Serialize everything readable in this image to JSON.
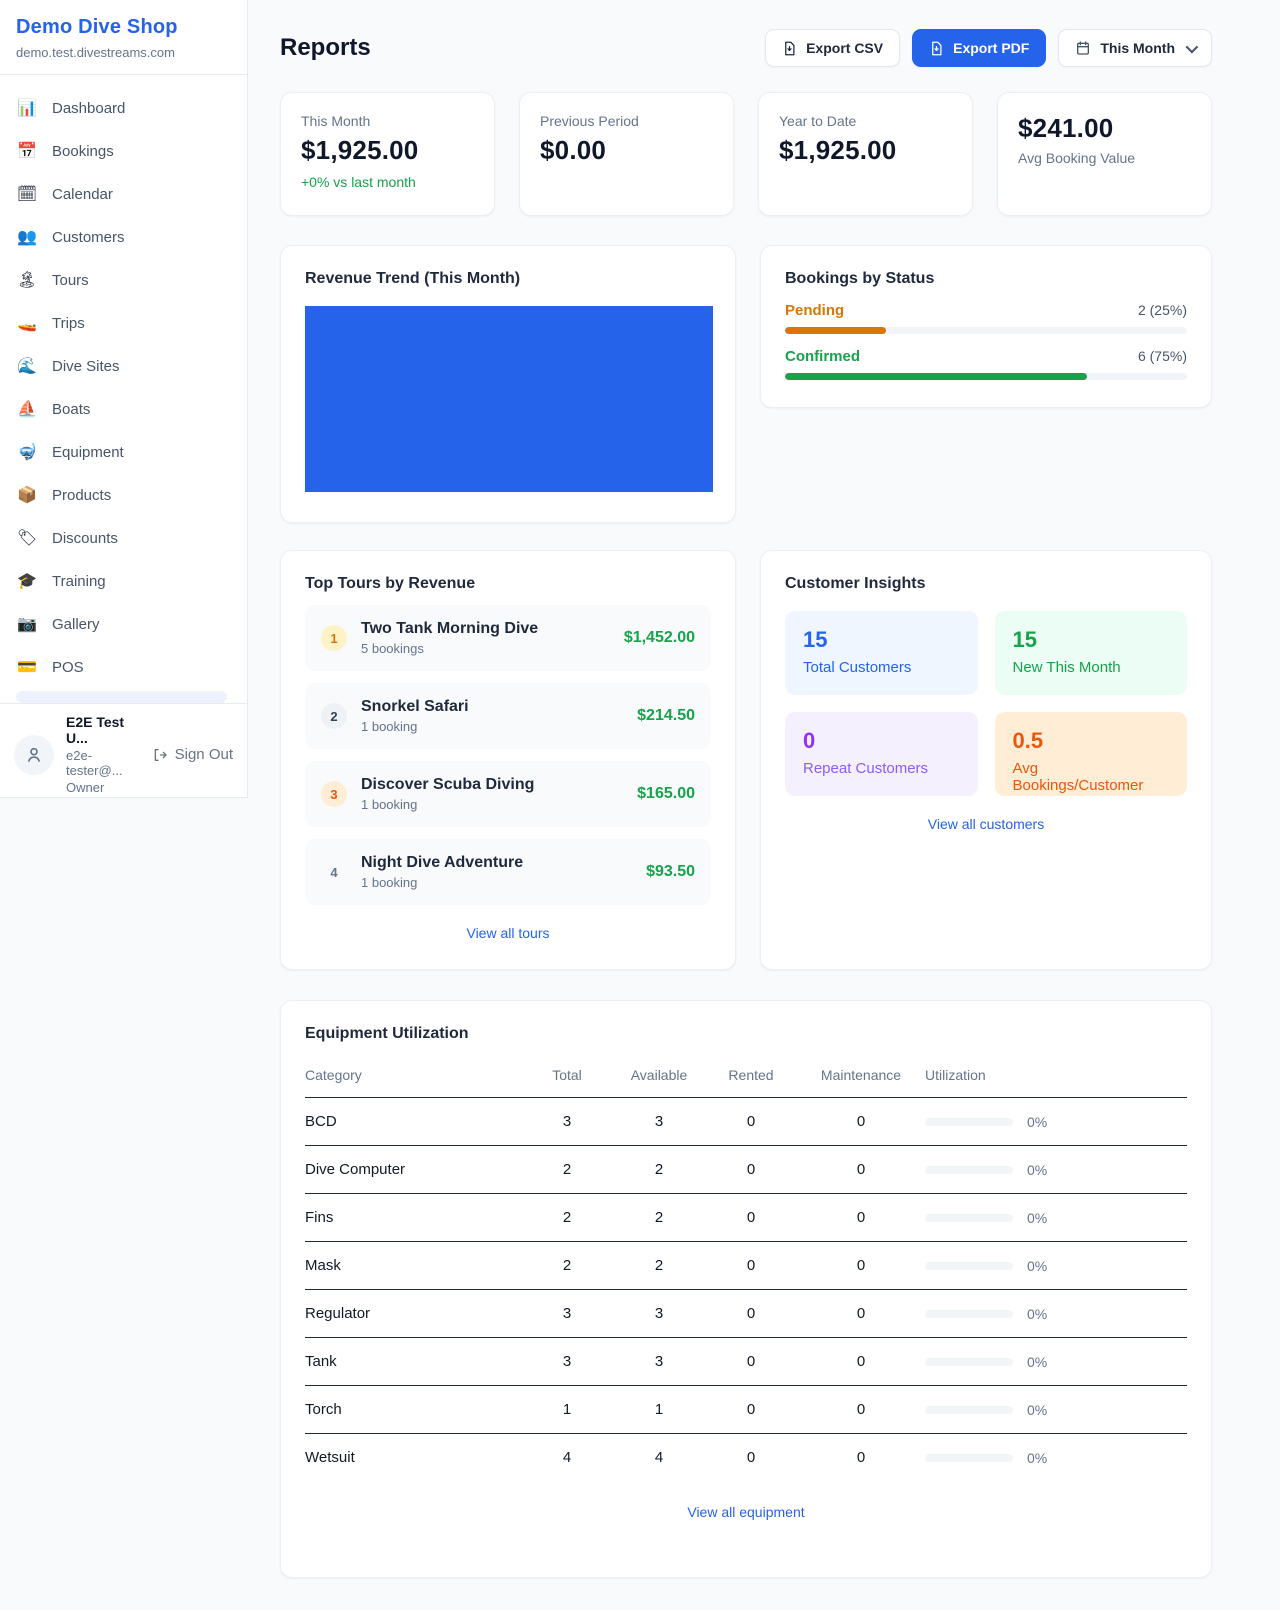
{
  "colors": {
    "accent": "#2563eb",
    "green": "#16a34a",
    "orange": "#d97706",
    "deep_orange": "#ea580c",
    "purple": "#9333ea"
  },
  "sidebar": {
    "shop_name": "Demo Dive Shop",
    "domain": "demo.test.divestreams.com",
    "items": [
      {
        "icon": "dashboard-chart-icon",
        "glyph": "📊",
        "label": "Dashboard"
      },
      {
        "icon": "bookings-calendar-icon",
        "glyph": "📅",
        "label": "Bookings"
      },
      {
        "icon": "calendar-icon",
        "glyph": "🗓",
        "label": "Calendar"
      },
      {
        "icon": "customers-icon",
        "glyph": "👥",
        "label": "Customers"
      },
      {
        "icon": "tours-island-icon",
        "glyph": "🏝",
        "label": "Tours"
      },
      {
        "icon": "trips-speedboat-icon",
        "glyph": "🚤",
        "label": "Trips"
      },
      {
        "icon": "dive-sites-wave-icon",
        "glyph": "🌊",
        "label": "Dive Sites"
      },
      {
        "icon": "boats-sailboat-icon",
        "glyph": "⛵",
        "label": "Boats"
      },
      {
        "icon": "equipment-mask-icon",
        "glyph": "🤿",
        "label": "Equipment"
      },
      {
        "icon": "products-box-icon",
        "glyph": "📦",
        "label": "Products"
      },
      {
        "icon": "discounts-tag-icon",
        "glyph": "🏷",
        "label": "Discounts"
      },
      {
        "icon": "training-cap-icon",
        "glyph": "🎓",
        "label": "Training"
      },
      {
        "icon": "gallery-camera-icon",
        "glyph": "📷",
        "label": "Gallery"
      },
      {
        "icon": "pos-card-icon",
        "glyph": "💳",
        "label": "POS"
      }
    ],
    "user": {
      "name": "E2E Test U...",
      "email": "e2e-tester@...",
      "role": "Owner",
      "sign_out": "Sign Out"
    }
  },
  "header": {
    "title": "Reports",
    "export_csv": "Export CSV",
    "export_pdf": "Export PDF",
    "period": "This Month"
  },
  "stats": [
    {
      "label": "This Month",
      "value": "$1,925.00",
      "delta": "+0% vs last month"
    },
    {
      "label": "Previous Period",
      "value": "$0.00"
    },
    {
      "label": "Year to Date",
      "value": "$1,925.00"
    },
    {
      "label": "Avg Booking Value",
      "value": "$241.00"
    }
  ],
  "revenue_trend": {
    "title": "Revenue Trend (This Month)"
  },
  "bookings_by_status": {
    "title": "Bookings by Status",
    "rows": [
      {
        "label": "Pending",
        "value": "2 (25%)",
        "percent": 25
      },
      {
        "label": "Confirmed",
        "value": "6 (75%)",
        "percent": 75
      }
    ]
  },
  "top_tours": {
    "title": "Top Tours by Revenue",
    "items": [
      {
        "rank": "1",
        "name": "Two Tank Morning Dive",
        "bookings": "5 bookings",
        "revenue": "$1,452.00"
      },
      {
        "rank": "2",
        "name": "Snorkel Safari",
        "bookings": "1 booking",
        "revenue": "$214.50"
      },
      {
        "rank": "3",
        "name": "Discover Scuba Diving",
        "bookings": "1 booking",
        "revenue": "$165.00"
      },
      {
        "rank": "4",
        "name": "Night Dive Adventure",
        "bookings": "1 booking",
        "revenue": "$93.50"
      }
    ],
    "view_all": "View all tours"
  },
  "customer_insights": {
    "title": "Customer Insights",
    "tiles": [
      {
        "value": "15",
        "label": "Total Customers"
      },
      {
        "value": "15",
        "label": "New This Month"
      },
      {
        "value": "0",
        "label": "Repeat Customers"
      },
      {
        "value": "0.5",
        "label": "Avg Bookings/Customer"
      }
    ],
    "view_all": "View all customers"
  },
  "equipment": {
    "title": "Equipment Utilization",
    "columns": [
      "Category",
      "Total",
      "Available",
      "Rented",
      "Maintenance",
      "Utilization"
    ],
    "rows": [
      {
        "category": "BCD",
        "total": "3",
        "available": "3",
        "rented": "0",
        "maintenance": "0",
        "utilization": "0%",
        "percent": 0
      },
      {
        "category": "Dive Computer",
        "total": "2",
        "available": "2",
        "rented": "0",
        "maintenance": "0",
        "utilization": "0%",
        "percent": 0
      },
      {
        "category": "Fins",
        "total": "2",
        "available": "2",
        "rented": "0",
        "maintenance": "0",
        "utilization": "0%",
        "percent": 0
      },
      {
        "category": "Mask",
        "total": "2",
        "available": "2",
        "rented": "0",
        "maintenance": "0",
        "utilization": "0%",
        "percent": 0
      },
      {
        "category": "Regulator",
        "total": "3",
        "available": "3",
        "rented": "0",
        "maintenance": "0",
        "utilization": "0%",
        "percent": 0
      },
      {
        "category": "Tank",
        "total": "3",
        "available": "3",
        "rented": "0",
        "maintenance": "0",
        "utilization": "0%",
        "percent": 0
      },
      {
        "category": "Torch",
        "total": "1",
        "available": "1",
        "rented": "0",
        "maintenance": "0",
        "utilization": "0%",
        "percent": 0
      },
      {
        "category": "Wetsuit",
        "total": "4",
        "available": "4",
        "rented": "0",
        "maintenance": "0",
        "utilization": "0%",
        "percent": 0
      }
    ],
    "view_all": "View all equipment"
  }
}
